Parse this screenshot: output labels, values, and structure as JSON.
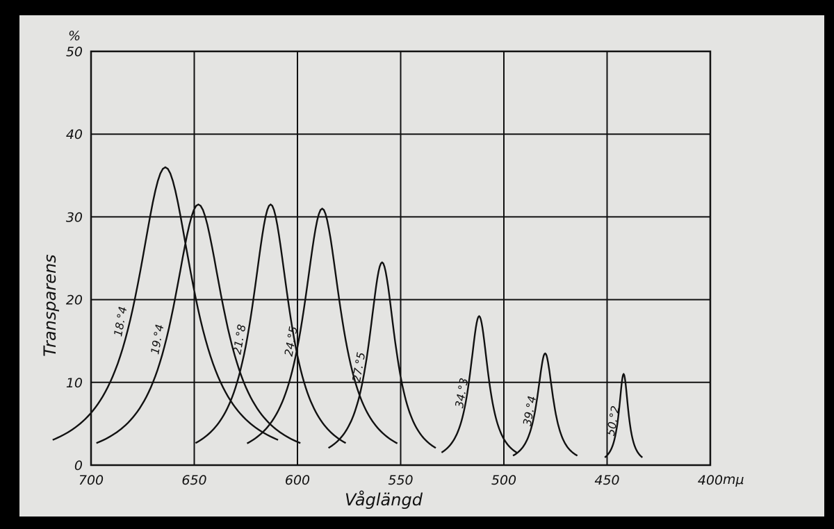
{
  "chart_data": {
    "type": "line",
    "title": "",
    "xlabel": "Våglängd",
    "ylabel": "Transparens",
    "y_unit": "%",
    "x_unit": "mμ",
    "xlim": [
      700,
      400
    ],
    "ylim": [
      0,
      50
    ],
    "x_ticks": [
      "700",
      "650",
      "600",
      "550",
      "500",
      "450",
      "400"
    ],
    "y_ticks": [
      "0",
      "10",
      "20",
      "30",
      "40",
      "50"
    ],
    "grid": true,
    "series": [
      {
        "name": "18.°4",
        "peak_x": 664,
        "peak_y": 36.0,
        "half_width": 21
      },
      {
        "name": "19.°4",
        "peak_x": 648,
        "peak_y": 31.5,
        "half_width": 19
      },
      {
        "name": "21.°8",
        "peak_x": 613,
        "peak_y": 31.5,
        "half_width": 14
      },
      {
        "name": "24.°5",
        "peak_x": 588,
        "peak_y": 31.0,
        "half_width": 14
      },
      {
        "name": "27.°5",
        "peak_x": 559,
        "peak_y": 24.5,
        "half_width": 10
      },
      {
        "name": "34.°3",
        "peak_x": 512,
        "peak_y": 18.0,
        "half_width": 7
      },
      {
        "name": "39.°4",
        "peak_x": 480,
        "peak_y": 13.5,
        "half_width": 6
      },
      {
        "name": "50.°2",
        "peak_x": 442,
        "peak_y": 11.0,
        "half_width": 3.5
      }
    ]
  }
}
